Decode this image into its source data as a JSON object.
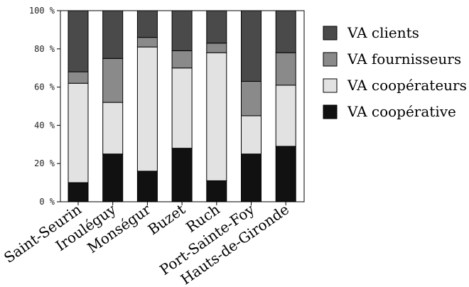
{
  "chart_data": {
    "type": "bar",
    "stacked": true,
    "categories": [
      "Saint-Seurin",
      "Irouléguy",
      "Monségur",
      "Buzet",
      "Ruch",
      "Port-Sainte-Foy",
      "Hauts-de-Gironde"
    ],
    "series": [
      {
        "name": "VA coopérative",
        "color": "#111111",
        "values": [
          10,
          25,
          16,
          28,
          11,
          25,
          29
        ]
      },
      {
        "name": "VA coopérateurs",
        "color": "#e2e2e2",
        "values": [
          52,
          27,
          65,
          42,
          67,
          20,
          32
        ]
      },
      {
        "name": "VA fournisseurs",
        "color": "#8a8a8a",
        "values": [
          6,
          23,
          5,
          9,
          5,
          18,
          17
        ]
      },
      {
        "name": "VA clients",
        "color": "#4a4a4a",
        "values": [
          32,
          25,
          14,
          21,
          17,
          37,
          22
        ]
      }
    ],
    "legend_order": [
      "VA clients",
      "VA fournisseurs",
      "VA coopérateurs",
      "VA coopérative"
    ],
    "ylim": [
      0,
      100
    ],
    "yticks": [
      "0 %",
      "20 %",
      "40 %",
      "60 %",
      "80 %",
      "100 %"
    ],
    "legend_position": "right",
    "grid": false
  }
}
